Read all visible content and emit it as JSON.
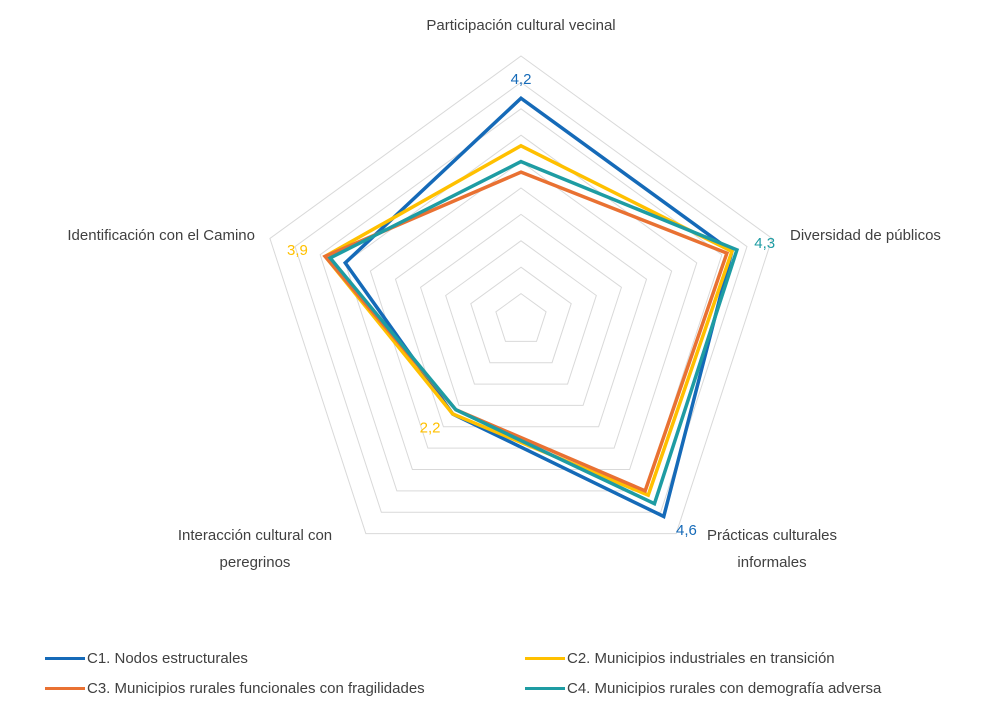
{
  "chart_data": {
    "type": "radar",
    "categories": [
      "Participación cultural vecinal",
      "Diversidad de públicos",
      "Prácticas culturales informales",
      "Interacción cultural con peregrinos",
      "Identificación con el Camino"
    ],
    "rlim": [
      0,
      5
    ],
    "rticks": [
      0.5,
      1,
      1.5,
      2,
      2.5,
      3,
      3.5,
      4,
      4.5,
      5
    ],
    "grid": true,
    "legend": "bottom",
    "series": [
      {
        "name": "C1. Nodos estructurales",
        "color": "#156ab8",
        "values": [
          4.2,
          4.2,
          4.6,
          2.2,
          3.5
        ],
        "value_labels": [
          "4,2",
          null,
          "4,6",
          null,
          null
        ]
      },
      {
        "name": "C2. Municipios industriales en transición",
        "color": "#ffc000",
        "values": [
          3.3,
          4.2,
          4.1,
          2.2,
          3.9
        ],
        "value_labels": [
          null,
          null,
          null,
          "2,2",
          "3,9"
        ]
      },
      {
        "name": "C3. Municipios rurales funcionales con fragilidades",
        "color": "#e97132",
        "values": [
          2.8,
          4.1,
          4.0,
          2.1,
          3.9
        ]
      },
      {
        "name": "C4. Municipios rurales con demografía adversa",
        "color": "#1e9ca3",
        "values": [
          3.0,
          4.3,
          4.3,
          2.1,
          3.8
        ],
        "value_labels": [
          null,
          "4,3",
          null,
          null,
          null
        ]
      }
    ]
  }
}
